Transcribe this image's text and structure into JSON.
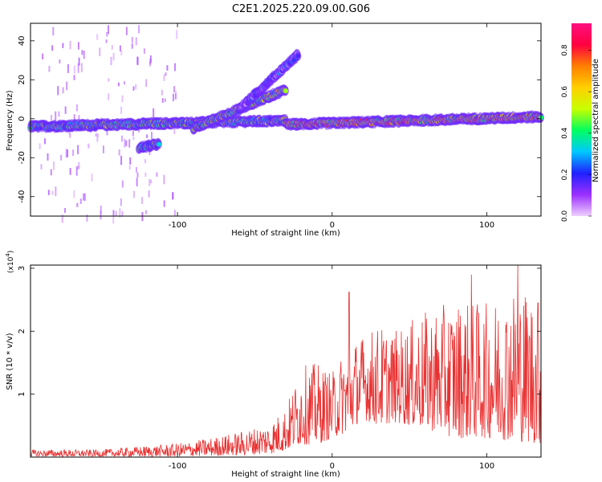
{
  "title": "C2E1.2025.220.09.00.G06",
  "chart_data": [
    {
      "type": "heatmap",
      "xlabel": "Height of straight line (km)",
      "ylabel": "Frequency (Hz)",
      "xlim": [
        -195,
        135
      ],
      "ylim": [
        -50,
        49
      ],
      "xticks": [
        -100,
        0,
        100
      ],
      "yticks": [
        -40,
        -20,
        0,
        20,
        40
      ],
      "colorbar": {
        "label": "Normalized spectral amplitude",
        "range": [
          0.0,
          0.93
        ],
        "ticks": [
          0.0,
          0.2,
          0.4,
          0.6,
          0.8
        ],
        "tick_labels": [
          "0.0",
          "0.2",
          "0.4",
          "0.6",
          "0.8"
        ],
        "colormap": [
          "#f0d0ff",
          "#9b30ff",
          "#2020ff",
          "#00c8ff",
          "#00ff60",
          "#c8ff00",
          "#ffd000",
          "#ff8000",
          "#ff0040",
          "#ff1080"
        ]
      },
      "features": [
        {
          "name": "main band, left",
          "x": [
            -195,
            -30
          ],
          "freq": [
            -4,
            -1
          ],
          "amplitude": 0.4
        },
        {
          "name": "disturbed region",
          "x": [
            -90,
            -30
          ],
          "freq": [
            -5,
            15
          ],
          "amplitude": 0.45
        },
        {
          "name": "rising branch",
          "x": [
            -60,
            -22
          ],
          "freq": [
            5,
            33
          ],
          "amplitude": 0.1
        },
        {
          "name": "low-frequency segment",
          "x": [
            -125,
            -112
          ],
          "freq": [
            -15,
            -13
          ],
          "amplitude": 0.4
        },
        {
          "name": "main band, right",
          "x": [
            -30,
            135
          ],
          "freq": [
            -3,
            1
          ],
          "amplitude": 0.6
        }
      ]
    },
    {
      "type": "line",
      "xlabel": "Height of straight line (km)",
      "ylabel": "SNR (10 * v/v)",
      "yscale_label": "(x10",
      "yscale_exponent": "4",
      "yscale_suffix": ")",
      "xlim": [
        -195,
        135
      ],
      "ylim": [
        0,
        3.05
      ],
      "xticks": [
        -100,
        0,
        100
      ],
      "yticks": [
        1,
        2,
        3
      ],
      "color": "#e83030",
      "envelope": {
        "x": [
          -195,
          -150,
          -100,
          -80,
          -60,
          -40,
          -30,
          -20,
          -10,
          0,
          10,
          20,
          30,
          40,
          60,
          80,
          100,
          120,
          135
        ],
        "high": [
          0.12,
          0.12,
          0.22,
          0.3,
          0.4,
          0.55,
          0.8,
          1.45,
          1.5,
          1.35,
          1.8,
          1.95,
          2.1,
          2.0,
          2.3,
          2.5,
          2.45,
          2.75,
          2.6
        ],
        "low": [
          0.01,
          0.01,
          0.01,
          0.02,
          0.03,
          0.05,
          0.1,
          0.2,
          0.2,
          0.3,
          0.4,
          0.6,
          0.5,
          0.55,
          0.45,
          0.3,
          0.3,
          0.25,
          0.2
        ]
      },
      "spikes": [
        {
          "x": 11,
          "y": 2.62
        },
        {
          "x": 90,
          "y": 2.9
        },
        {
          "x": 120,
          "y": 3.05
        },
        {
          "x": 133,
          "y": 2.45
        }
      ]
    }
  ]
}
